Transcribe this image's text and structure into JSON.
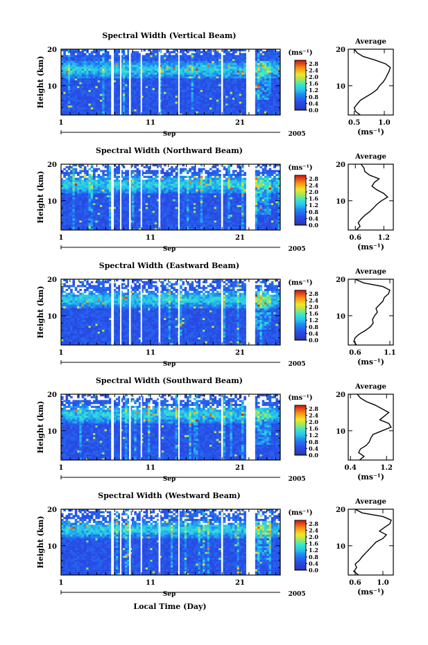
{
  "figure": {
    "xlabel": "Local Time (Day)",
    "month_label": "Sep",
    "year_label": "2005"
  },
  "chart_data": [
    {
      "type": "heatmap",
      "title": "Spectral Width (Vertical Beam)",
      "ylabel": "Height (km)",
      "ylim": [
        2,
        20
      ],
      "yticks": [
        "10",
        "20"
      ],
      "xlim": [
        1,
        25.5
      ],
      "xticks": [
        "1",
        "11",
        "21"
      ],
      "colorbar": {
        "unit": "(ms⁻¹)",
        "ticks": [
          "0.0",
          "0.4",
          "0.8",
          "1.2",
          "1.6",
          "2.0",
          "2.4",
          "2.8"
        ],
        "range": [
          0.0,
          3.0
        ]
      },
      "average_profile": {
        "title": "Average",
        "xlabel": "(ms⁻¹)",
        "xticks": [
          "0.5",
          "1.0"
        ],
        "xlim": [
          0.4,
          1.15
        ],
        "heights": [
          2,
          3,
          4,
          5,
          6,
          7,
          8,
          9,
          10,
          11,
          12,
          13,
          14,
          15,
          16,
          17,
          18,
          19,
          20
        ],
        "values": [
          0.6,
          0.52,
          0.5,
          0.55,
          0.6,
          0.7,
          0.8,
          0.88,
          0.92,
          0.98,
          1.02,
          1.05,
          1.08,
          1.1,
          1.02,
          0.85,
          0.65,
          0.55,
          0.5
        ]
      }
    },
    {
      "type": "heatmap",
      "title": "Spectral Width (Northward Beam)",
      "ylabel": "Height (km)",
      "ylim": [
        2,
        20
      ],
      "yticks": [
        "10",
        "20"
      ],
      "xlim": [
        1,
        25.5
      ],
      "xticks": [
        "1",
        "11",
        "21"
      ],
      "colorbar": {
        "unit": "(ms⁻¹)",
        "ticks": [
          "0.0",
          "0.4",
          "0.8",
          "1.2",
          "1.6",
          "2.0",
          "2.4",
          "2.8"
        ],
        "range": [
          0.0,
          3.0
        ]
      },
      "average_profile": {
        "title": "Average",
        "xlabel": "(ms⁻¹)",
        "xticks": [
          "0.6",
          "1.2"
        ],
        "xlim": [
          0.45,
          1.4
        ],
        "heights": [
          2,
          3,
          4,
          5,
          6,
          7,
          8,
          9,
          10,
          11,
          12,
          13,
          14,
          15,
          16,
          17,
          18,
          19,
          20
        ],
        "values": [
          0.62,
          0.7,
          0.66,
          0.72,
          0.8,
          0.9,
          0.98,
          1.05,
          1.15,
          1.28,
          1.2,
          1.05,
          0.95,
          1.0,
          1.1,
          0.9,
          0.8,
          0.78,
          0.72
        ]
      }
    },
    {
      "type": "heatmap",
      "title": "Spectral Width (Eastward Beam)",
      "ylabel": "Height (km)",
      "ylim": [
        2,
        20
      ],
      "yticks": [
        "10",
        "20"
      ],
      "xlim": [
        1,
        25.5
      ],
      "xticks": [
        "1",
        "11",
        "21"
      ],
      "colorbar": {
        "unit": "(ms⁻¹)",
        "ticks": [
          "0.0",
          "0.4",
          "0.8",
          "1.2",
          "1.6",
          "2.0",
          "2.4",
          "2.8"
        ],
        "range": [
          0.0,
          3.0
        ]
      },
      "average_profile": {
        "title": "Average",
        "xlabel": "(ms⁻¹)",
        "xticks": [
          "0.6",
          "1.1"
        ],
        "xlim": [
          0.5,
          1.15
        ],
        "heights": [
          2,
          3,
          4,
          5,
          6,
          7,
          8,
          9,
          10,
          11,
          12,
          13,
          14,
          15,
          16,
          17,
          18,
          19,
          20
        ],
        "values": [
          0.62,
          0.58,
          0.6,
          0.66,
          0.75,
          0.82,
          0.86,
          0.85,
          0.88,
          0.92,
          0.9,
          0.95,
          1.0,
          1.02,
          1.08,
          1.1,
          1.0,
          0.72,
          0.6
        ]
      }
    },
    {
      "type": "heatmap",
      "title": "Spectral Width (Southward Beam)",
      "ylabel": "Height (km)",
      "ylim": [
        2,
        20
      ],
      "yticks": [
        "10",
        "20"
      ],
      "xlim": [
        1,
        25.5
      ],
      "xticks": [
        "1",
        "11",
        "21"
      ],
      "colorbar": {
        "unit": "(ms⁻¹)",
        "ticks": [
          "0.0",
          "0.4",
          "0.8",
          "1.2",
          "1.6",
          "2.0",
          "2.4",
          "2.8"
        ],
        "range": [
          0.0,
          3.0
        ]
      },
      "average_profile": {
        "title": "Average",
        "xlabel": "(ms⁻¹)",
        "xticks": [
          "0.4",
          "1.2"
        ],
        "xlim": [
          0.35,
          1.35
        ],
        "heights": [
          2,
          3,
          4,
          5,
          6,
          7,
          8,
          9,
          10,
          11,
          12,
          13,
          14,
          15,
          16,
          17,
          18,
          19,
          20
        ],
        "values": [
          0.6,
          0.7,
          0.58,
          0.62,
          0.75,
          0.82,
          0.85,
          0.9,
          1.1,
          1.3,
          1.25,
          1.05,
          1.15,
          1.25,
          1.1,
          0.95,
          0.75,
          0.62,
          0.55
        ]
      }
    },
    {
      "type": "heatmap",
      "title": "Spectral Width (Westward Beam)",
      "ylabel": "Height (km)",
      "ylim": [
        2,
        20
      ],
      "yticks": [
        "10",
        "20"
      ],
      "xlim": [
        1,
        25.5
      ],
      "xticks": [
        "1",
        "11",
        "21"
      ],
      "colorbar": {
        "unit": "(ms⁻¹)",
        "ticks": [
          "0.0",
          "0.4",
          "0.8",
          "1.2",
          "1.6",
          "2.0",
          "2.4",
          "2.8"
        ],
        "range": [
          0.0,
          3.0
        ]
      },
      "average_profile": {
        "title": "Average",
        "xlabel": "(ms⁻¹)",
        "xticks": [
          "0.6",
          "1.0"
        ],
        "xlim": [
          0.5,
          1.15
        ],
        "heights": [
          2,
          3,
          4,
          5,
          6,
          7,
          8,
          9,
          10,
          11,
          12,
          13,
          14,
          15,
          16,
          17,
          18,
          19,
          20
        ],
        "values": [
          0.65,
          0.58,
          0.62,
          0.6,
          0.66,
          0.7,
          0.75,
          0.8,
          0.85,
          0.9,
          1.0,
          1.05,
          0.95,
          1.02,
          1.1,
          1.12,
          1.0,
          0.7,
          0.6
        ]
      }
    }
  ]
}
